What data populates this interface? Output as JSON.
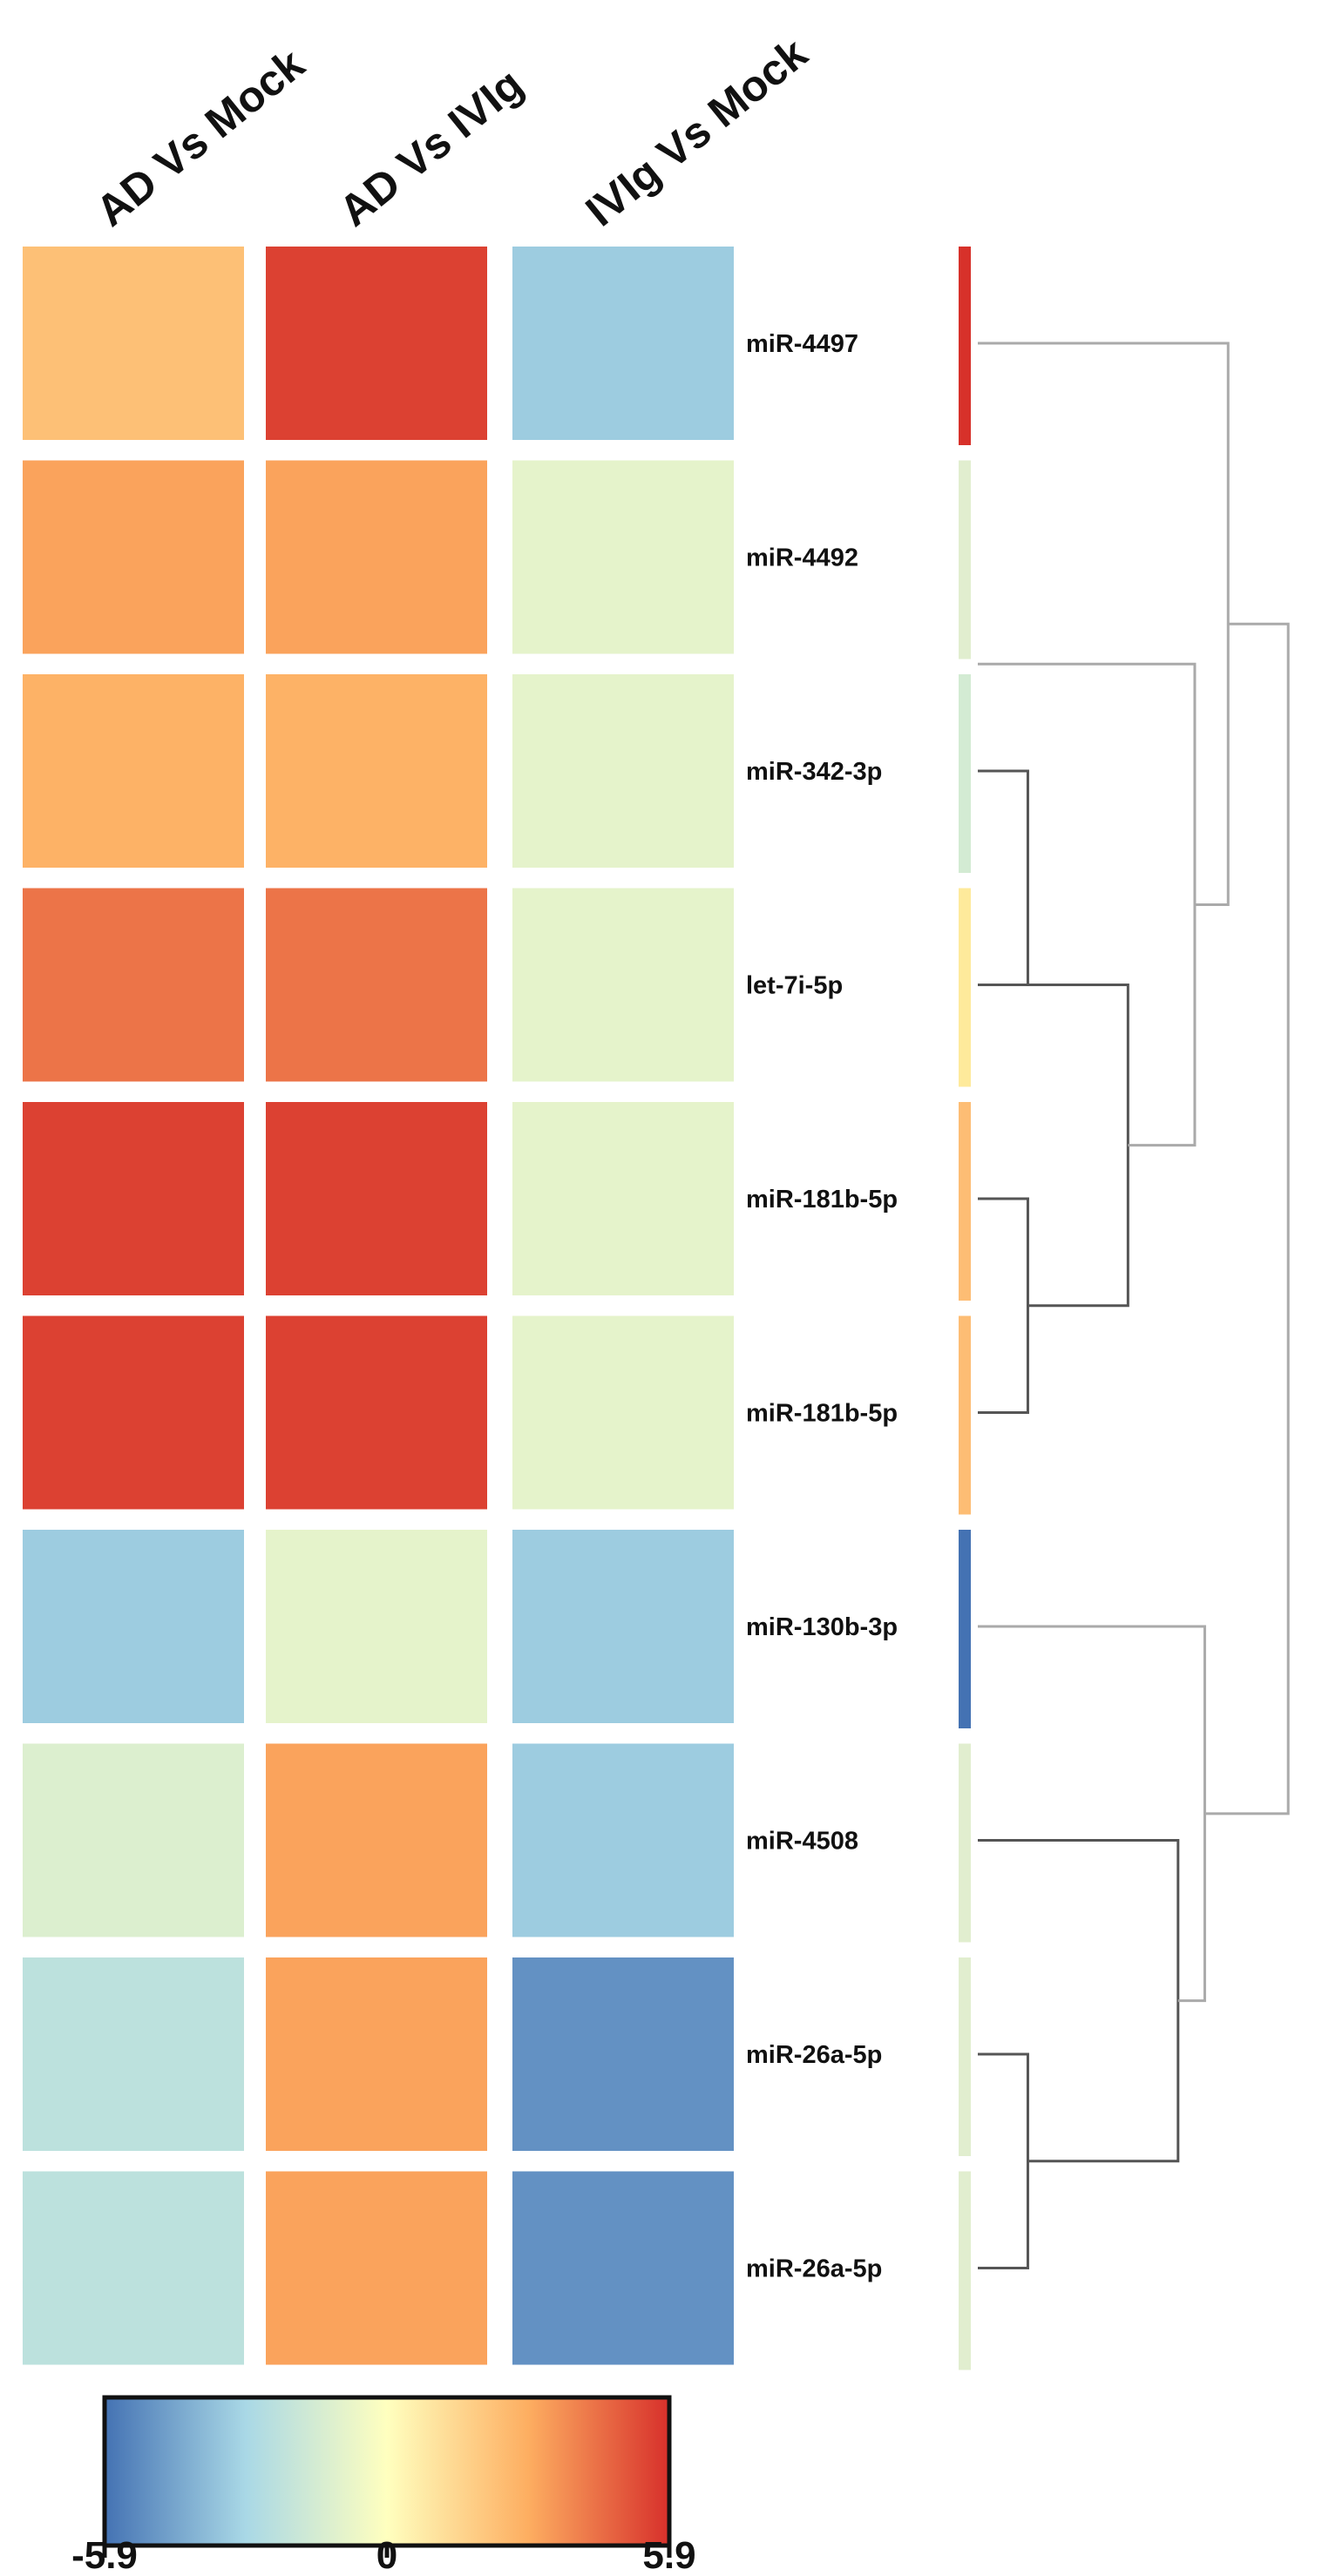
{
  "chart_data": {
    "type": "heatmap",
    "title": "",
    "columns": [
      "AD Vs Mock",
      "AD Vs IVIg",
      "IVIg Vs Mock"
    ],
    "rows": [
      "miR-4497",
      "miR-4492",
      "miR-342-3p",
      "let-7i-5p",
      "miR-181b-5p",
      "miR-181b-5p",
      "miR-130b-3p",
      "miR-4508",
      "miR-26a-5p",
      "miR-26a-5p"
    ],
    "values": [
      [
        2.3,
        5.5,
        -3.3
      ],
      [
        3.2,
        3.2,
        -0.9
      ],
      [
        2.8,
        2.8,
        -0.9
      ],
      [
        4.3,
        4.3,
        -0.9
      ],
      [
        5.5,
        5.5,
        -0.9
      ],
      [
        5.5,
        5.5,
        -0.9
      ],
      [
        -3.3,
        -0.9,
        -3.3
      ],
      [
        -1.2,
        3.2,
        -3.3
      ],
      [
        -2.3,
        3.2,
        -5.0
      ],
      [
        -2.3,
        3.2,
        -5.0
      ]
    ],
    "row_cluster_colors": [
      "#d7312a",
      "#e1eecf",
      "#d3ebd3",
      "#feea9b",
      "#fdbd74",
      "#fdbd74",
      "#4472b3",
      "#e1eecf",
      "#e1eecf",
      "#e1eecf"
    ],
    "dendrogram_merges": [
      {
        "rows": [
          2,
          3
        ],
        "height": 0.15
      },
      {
        "rows": [
          4,
          5
        ],
        "height": 0.15
      },
      {
        "rows": [
          8,
          9
        ],
        "height": 0.15
      },
      {
        "rows": [
          3,
          4.5
        ],
        "height": 0.45
      },
      {
        "rows": [
          7,
          8.5
        ],
        "height": 0.6
      },
      {
        "rows": [
          1.5,
          3.75
        ],
        "height": 0.65
      },
      {
        "rows": [
          6,
          7.75
        ],
        "height": 0.68
      },
      {
        "rows": [
          0,
          2.625
        ],
        "height": 0.75
      },
      {
        "rows": [
          1.3125,
          6.875
        ],
        "height": 0.93
      }
    ],
    "colorbar": {
      "min": -5.9,
      "max": 5.9,
      "ticks": [
        "-5.9",
        "0",
        "5.9"
      ],
      "stops": [
        "#4472b3",
        "#a9d8e6",
        "#ffffbf",
        "#fdae61",
        "#d7302b"
      ]
    }
  }
}
